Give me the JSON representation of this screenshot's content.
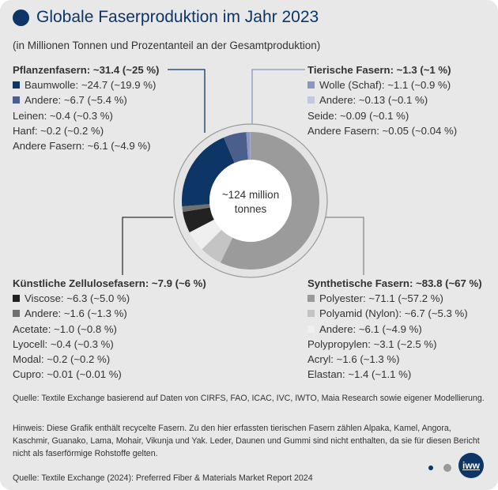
{
  "title": "Globale Faserproduktion im Jahr 2023",
  "subtitle": "(in Millionen Tonnen und Prozentanteil an der Gesamtproduktion)",
  "chart_data": {
    "type": "pie",
    "title": "Globale Faserproduktion im Jahr 2023",
    "center_label": "~124 million tonnes",
    "center_lines": [
      "~124 million",
      "tonnes"
    ],
    "unit": "Millionen Tonnen",
    "slices": [
      {
        "name": "Polyester",
        "value": 71.1,
        "percent": 57.2,
        "color": "#9b9b9b"
      },
      {
        "name": "Polyamid (Nylon)",
        "value": 6.7,
        "percent": 5.3,
        "color": "#c4c4c4"
      },
      {
        "name": "Andere (Synthetisch)",
        "value": 6.1,
        "percent": 4.9,
        "color": "#efefef"
      },
      {
        "name": "Viscose",
        "value": 6.3,
        "percent": 5.0,
        "color": "#222222"
      },
      {
        "name": "Andere (Zellulose)",
        "value": 1.6,
        "percent": 1.3,
        "color": "#707070"
      },
      {
        "name": "Baumwolle",
        "value": 24.7,
        "percent": 19.9,
        "color": "#0d3565"
      },
      {
        "name": "Andere (Pflanzen)",
        "value": 6.7,
        "percent": 5.4,
        "color": "#4c5f8c"
      },
      {
        "name": "Wolle (Schaf)",
        "value": 1.1,
        "percent": 0.9,
        "color": "#8c96c4"
      },
      {
        "name": "Andere (Tierisch)",
        "value": 0.13,
        "percent": 0.1,
        "color": "#c3c8e2"
      }
    ]
  },
  "groups": {
    "plant": {
      "heading": "Pflanzenfasern: ~31.4 (~25 %)",
      "items": [
        {
          "label": "Baumwolle: ~24.7 (~19.9 %)",
          "color": "#0d3565"
        },
        {
          "label": "Andere: ~6.7 (~5.4 %)",
          "color": "#4c5f8c"
        },
        {
          "label": "Leinen: ~0.4 (~0.3 %)"
        },
        {
          "label": "Hanf: ~0.2 (~0.2 %)"
        },
        {
          "label": "Andere Fasern: ~6.1 (~4.9 %)"
        }
      ]
    },
    "animal": {
      "heading": "Tierische Fasern: ~1.3 (~1 %)",
      "items": [
        {
          "label": "Wolle (Schaf): ~1.1 (~0.9 %)",
          "color": "#8c96c4"
        },
        {
          "label": "Andere: ~0.13 (~0.1 %)",
          "color": "#c3c8e2"
        },
        {
          "label": "Seide: ~0.09 (~0.1 %)"
        },
        {
          "label": "Andere Fasern: ~0.05 (~0.04 %)"
        }
      ]
    },
    "cellulose": {
      "heading": "Künstliche Zellulosefasern: ~7.9 (~6 %)",
      "items": [
        {
          "label": "Viscose: ~6.3 (~5.0 %)",
          "color": "#222222"
        },
        {
          "label": "Andere: ~1.6 (~1.3 %)",
          "color": "#707070"
        },
        {
          "label": "Acetate: ~1.0 (~0.8 %)"
        },
        {
          "label": "Lyocell: ~0.4 (~0.3 %)"
        },
        {
          "label": "Modal: ~0.2 (~0.2 %)"
        },
        {
          "label": "Cupro: ~0.01 (~0.01 %)"
        }
      ]
    },
    "synthetic": {
      "heading": "Synthetische Fasern: ~83.8 (~67 %)",
      "items": [
        {
          "label": "Polyester: ~71.1 (~57.2 %)",
          "color": "#9b9b9b"
        },
        {
          "label": "Polyamid (Nylon): ~6.7 (~5.3 %)",
          "color": "#c4c4c4"
        },
        {
          "label": "Andere: ~6.1 (~4.9 %)",
          "color": "#efefef"
        },
        {
          "label": "Polypropylen: ~3.1 (~2.5 %)"
        },
        {
          "label": "Acryl: ~1.6 (~1.3 %)"
        },
        {
          "label": "Elastan: ~1.4 (~1.1 %)"
        }
      ]
    }
  },
  "notes": {
    "source1": "Quelle: Textile Exchange basierend auf Daten von CIRFS, FAO, ICAC, IVC, IWTO, Maia Research sowie eigener Modellierung.",
    "hint": "Hinweis: Diese Grafik enthält recycelte Fasern. Zu den hier erfassten tierischen Fasern zählen Alpaka, Kamel, Angora, Kaschmir, Guanako, Lama, Mohair, Vikunja und Yak. Leder, Daunen und Gummi sind nicht enthalten, da sie für diesen Bericht nicht als faserförmige Rohstoffe gelten.",
    "source2": "Quelle: Textile Exchange (2024): Preferred Fiber & Materials Market Report 2024"
  },
  "logo": "iww"
}
